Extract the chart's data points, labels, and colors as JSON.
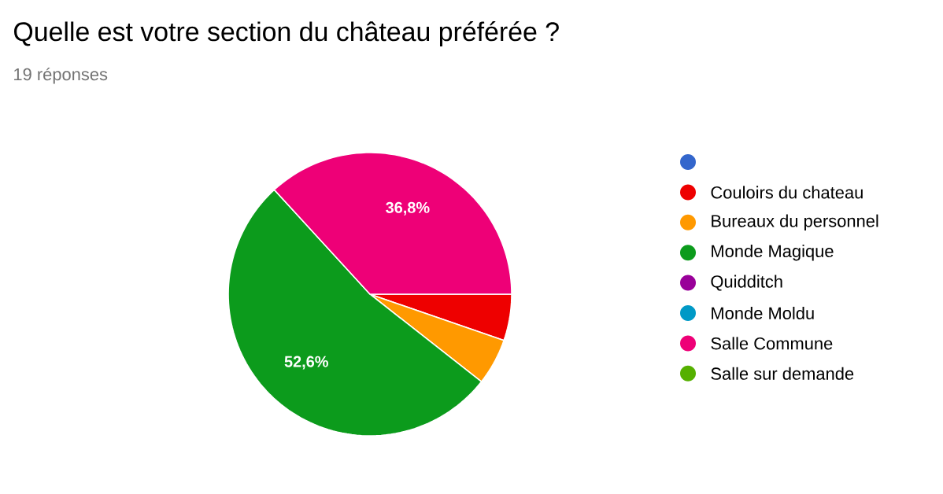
{
  "chart_data": {
    "type": "pie",
    "title": "Quelle est votre section du château préférée ?",
    "subtitle": "19 réponses",
    "categories": [
      null,
      "Couloirs du chateau",
      "Bureaux du personnel",
      "Monde Magique",
      "Quidditch",
      "Monde Moldu",
      "Salle Commune",
      "Salle sur demande"
    ],
    "values": [
      0,
      5.3,
      5.3,
      52.6,
      0,
      0,
      36.8,
      0
    ],
    "colors": [
      "#3366cc",
      "#ee0000",
      "#ff9900",
      "#0c9b1c",
      "#990099",
      "#0099c6",
      "#ee0077",
      "#55b000"
    ],
    "value_labels": [
      null,
      null,
      null,
      "52,6%",
      null,
      null,
      "36,8%",
      null
    ],
    "legend": "right"
  }
}
